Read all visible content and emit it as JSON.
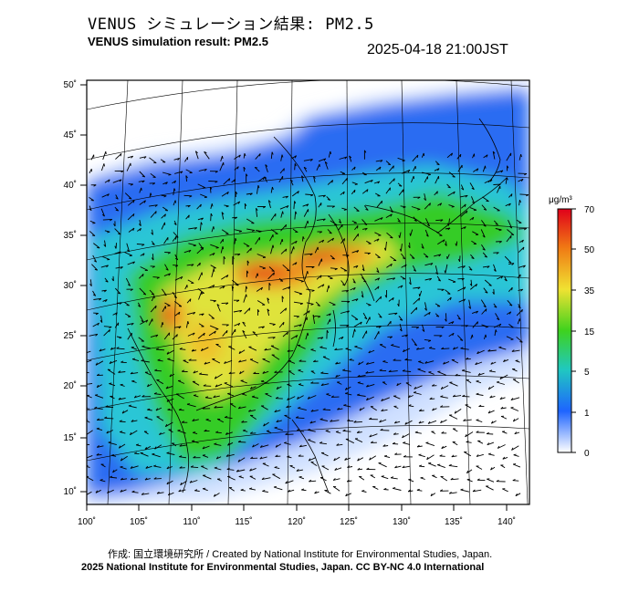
{
  "header": {
    "title_jp": "VENUS シミュレーション結果: PM2.5",
    "title_en": "VENUS simulation result: PM2.5",
    "timestamp": "2025-04-18 21:00JST"
  },
  "map": {
    "lon_ticks": [
      "100˚",
      "105˚",
      "110˚",
      "115˚",
      "120˚",
      "125˚",
      "130˚",
      "135˚",
      "140˚"
    ],
    "lat_ticks": [
      "50˚",
      "45˚",
      "40˚",
      "35˚",
      "30˚",
      "25˚",
      "20˚",
      "15˚",
      "10˚"
    ],
    "lon_range": [
      100,
      141
    ],
    "lat_range": [
      9,
      51
    ]
  },
  "colorbar": {
    "unit": "μg/m³",
    "labels": [
      "70",
      "50",
      "35",
      "15",
      "5",
      "1",
      "0"
    ],
    "colors": [
      "#e0001a",
      "#f07a14",
      "#f0e232",
      "#3ed21e",
      "#20c8c0",
      "#1e64ff",
      "#ffffff"
    ]
  },
  "footer": {
    "credit": "作成: 国立環境研究所 / Created by National Institute for Environmental Studies, Japan.",
    "license": "2025 National Institute for Environmental Studies, Japan. CC BY-NC 4.0 International"
  }
}
